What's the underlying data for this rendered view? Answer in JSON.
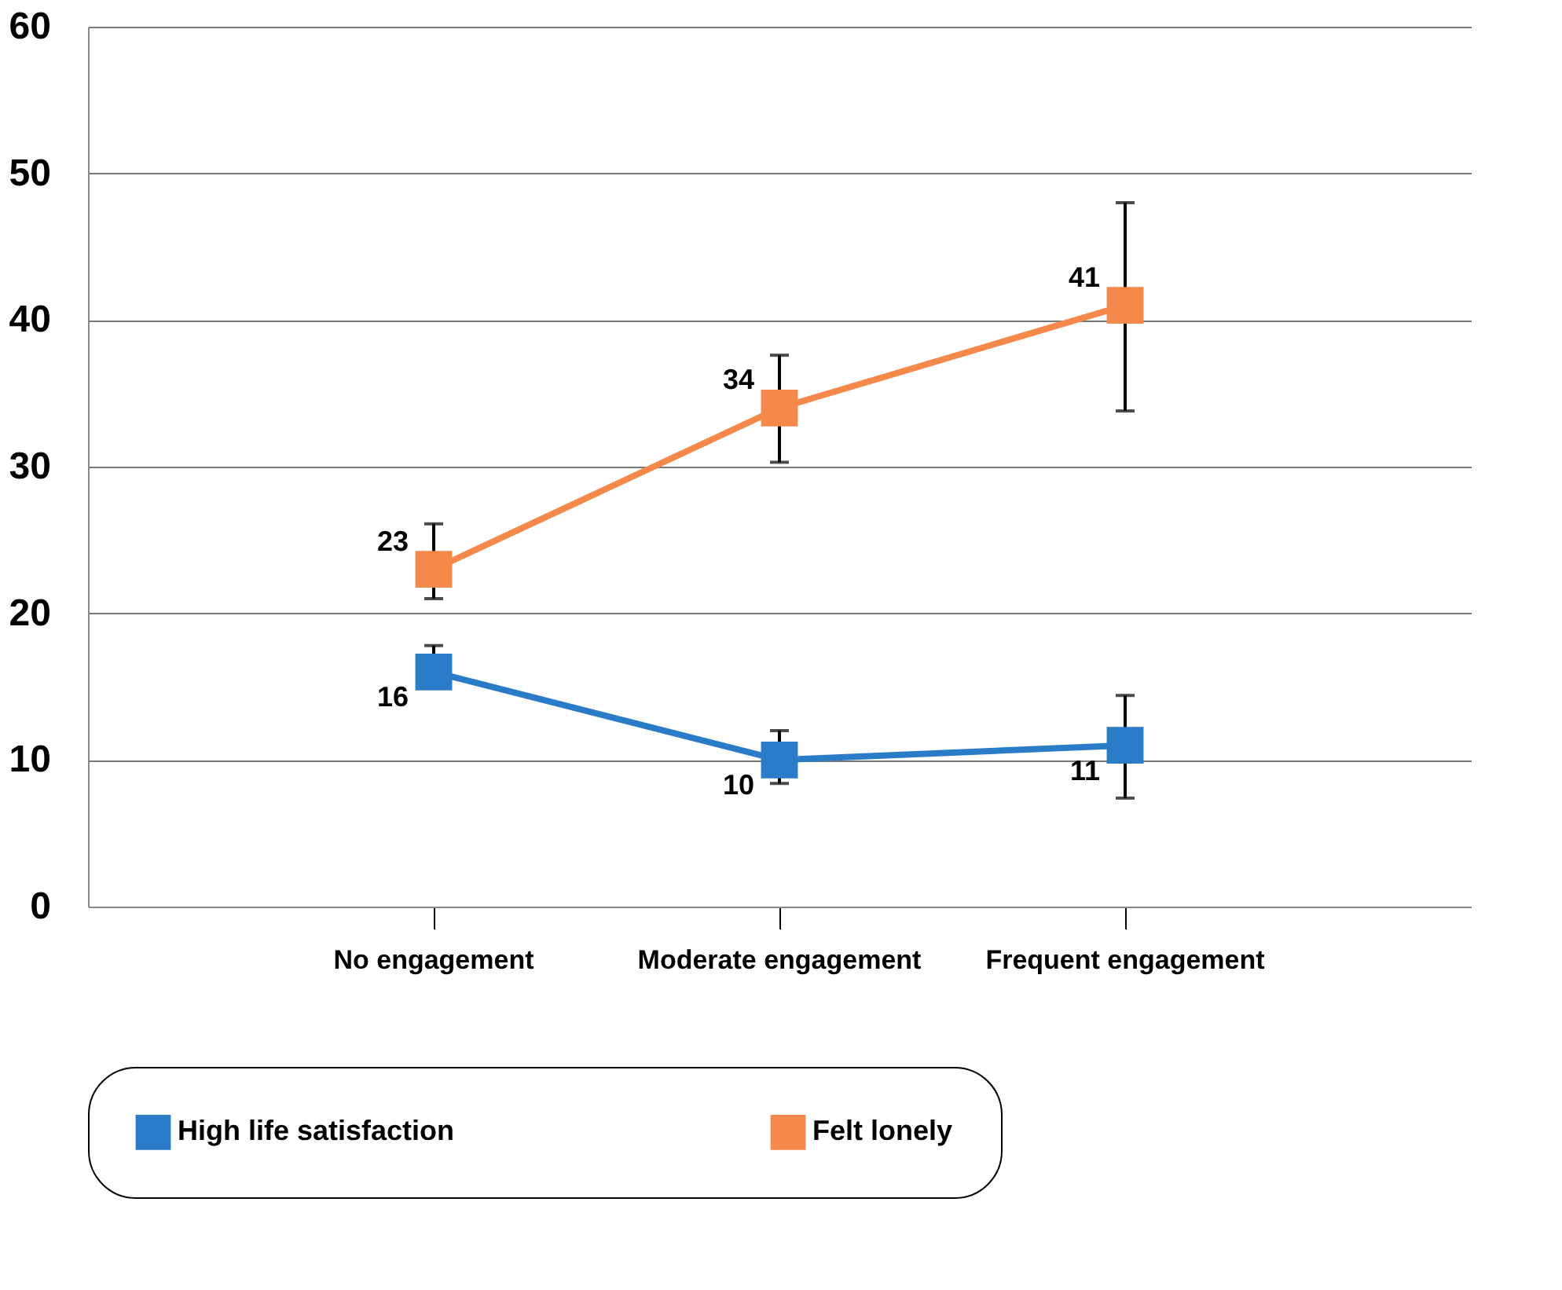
{
  "chart_data": {
    "type": "line",
    "categories": [
      "No engagement",
      "Moderate engagement",
      "Frequent engagement"
    ],
    "series": [
      {
        "name": "High life satisfaction",
        "color": "#2a7bc8",
        "values": [
          16,
          10,
          11
        ],
        "errors": [
          [
            14.9,
            17.8
          ],
          [
            8.4,
            12.0
          ],
          [
            7.4,
            14.4
          ]
        ]
      },
      {
        "name": "Felt lonely",
        "color": "#f5884b",
        "values": [
          23,
          34,
          41
        ],
        "errors": [
          [
            21.0,
            26.1
          ],
          [
            30.3,
            37.6
          ],
          [
            33.8,
            48.0
          ]
        ]
      }
    ],
    "ylim": [
      0,
      60
    ],
    "yticks": [
      0,
      10,
      20,
      30,
      40,
      50,
      60
    ],
    "grid": "y",
    "legend": "bottom",
    "marker": "square",
    "line_style": "solid",
    "data_labels": true
  }
}
